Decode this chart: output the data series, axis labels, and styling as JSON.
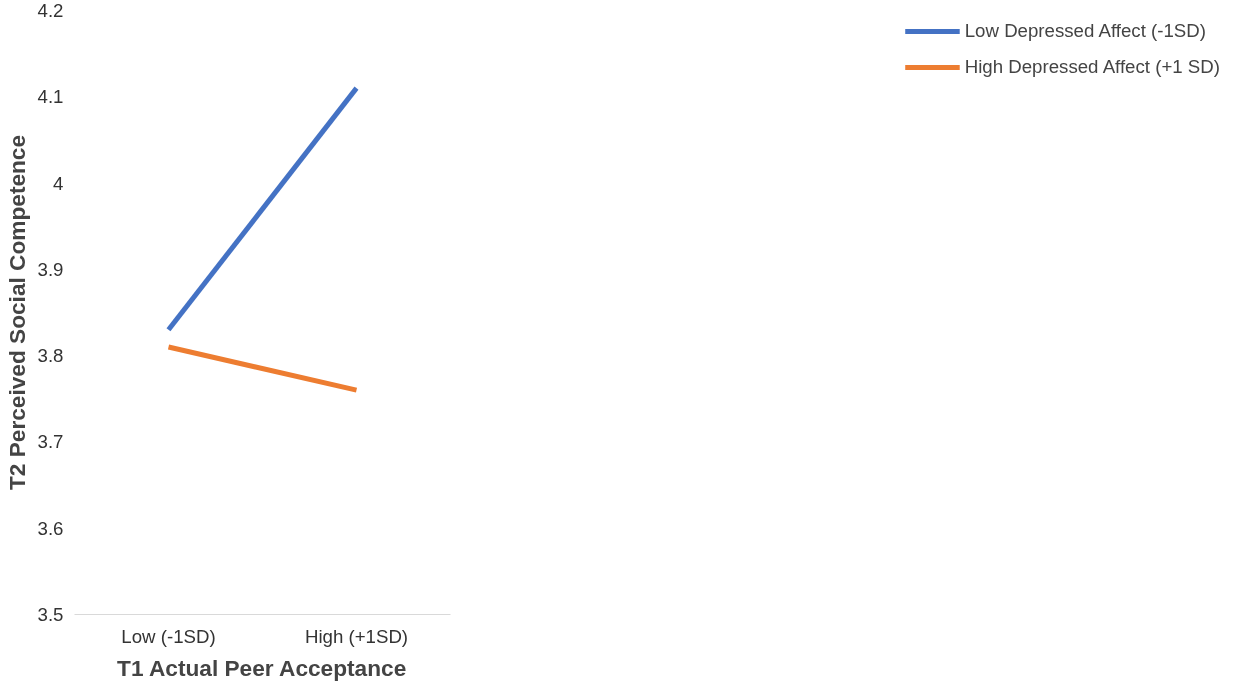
{
  "chart_data": {
    "type": "line",
    "xlabel": "T1 Actual Peer Acceptance",
    "ylabel": "T2 Perceived Social Competence",
    "categories": [
      "Low (-1SD)",
      "High (+1SD)"
    ],
    "series": [
      {
        "name": "Low Depressed Affect (-1SD)",
        "color": "#4472c4",
        "values": [
          3.83,
          4.11
        ]
      },
      {
        "name": "High Depressed Affect (+1 SD)",
        "color": "#ed7d31",
        "values": [
          3.81,
          3.76
        ]
      }
    ],
    "ylim": [
      3.5,
      4.2
    ],
    "yticks": [
      3.5,
      3.6,
      3.7,
      3.8,
      3.9,
      4,
      4.1,
      4.2
    ],
    "grid": false,
    "legend": "right",
    "marker": "none",
    "line_style": "solid"
  }
}
